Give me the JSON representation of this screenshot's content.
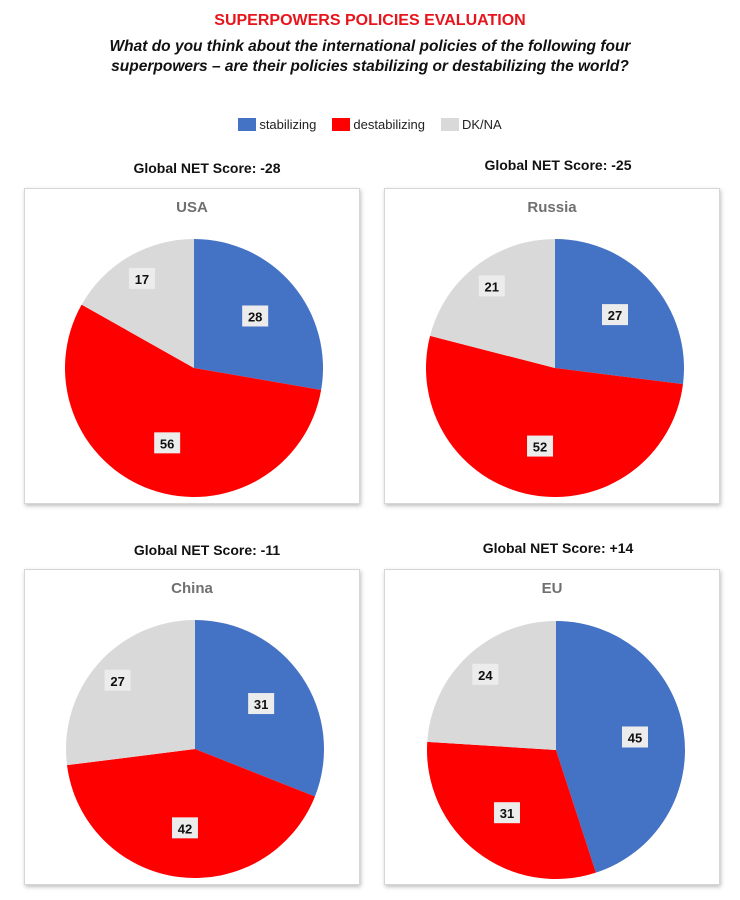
{
  "title": "SUPERPOWERS POLICIES EVALUATION",
  "subtitle": "What do you think about the international policies of the following four superpowers – are their policies stabilizing or destabilizing the world?",
  "legend": [
    {
      "label": "stabilizing",
      "color": "#4472c4"
    },
    {
      "label": "destabilizing",
      "color": "#ff0000"
    },
    {
      "label": "DK/NA",
      "color": "#d9d9d9"
    }
  ],
  "chart_data": [
    {
      "type": "pie",
      "title": "USA",
      "net_score": "Global NET Score: -28",
      "categories": [
        "stabilizing",
        "destabilizing",
        "DK/NA"
      ],
      "values": [
        28,
        56,
        17
      ]
    },
    {
      "type": "pie",
      "title": "Russia",
      "net_score": "Global NET Score: -25",
      "categories": [
        "stabilizing",
        "destabilizing",
        "DK/NA"
      ],
      "values": [
        27,
        52,
        21
      ]
    },
    {
      "type": "pie",
      "title": "China",
      "net_score": "Global NET Score: -11",
      "categories": [
        "stabilizing",
        "destabilizing",
        "DK/NA"
      ],
      "values": [
        31,
        42,
        27
      ]
    },
    {
      "type": "pie",
      "title": "EU",
      "net_score": "Global NET Score: +14",
      "categories": [
        "stabilizing",
        "destabilizing",
        "DK/NA"
      ],
      "values": [
        45,
        31,
        24
      ]
    }
  ]
}
